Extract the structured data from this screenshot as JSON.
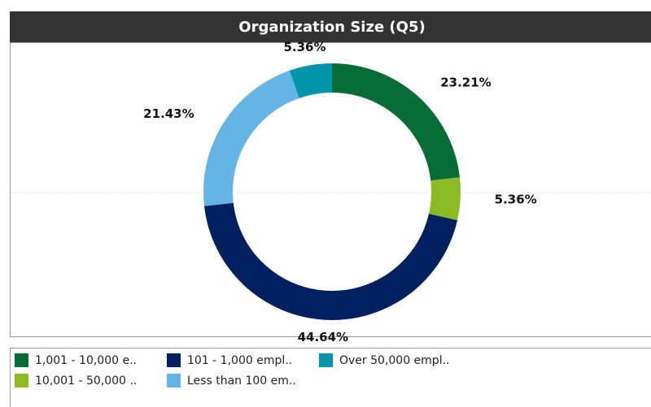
{
  "chart_data": {
    "type": "pie",
    "title": "Organization Size (Q5)",
    "donut": true,
    "categories": [
      "1,001 -  10,000 e..",
      "10,001 - 50,000 ..",
      "101 - 1,000 empl..",
      "Less than 100 em..",
      "Over 50,000 empl.."
    ],
    "values": [
      23.21,
      5.36,
      44.64,
      21.43,
      5.36
    ],
    "value_labels": [
      "23.21%",
      "5.36%",
      "44.64%",
      "21.43%",
      "5.36%"
    ],
    "colors": [
      "#056d35",
      "#8dbb25",
      "#00205f",
      "#64b5e6",
      "#0095a8"
    ],
    "legend": "bottom"
  }
}
